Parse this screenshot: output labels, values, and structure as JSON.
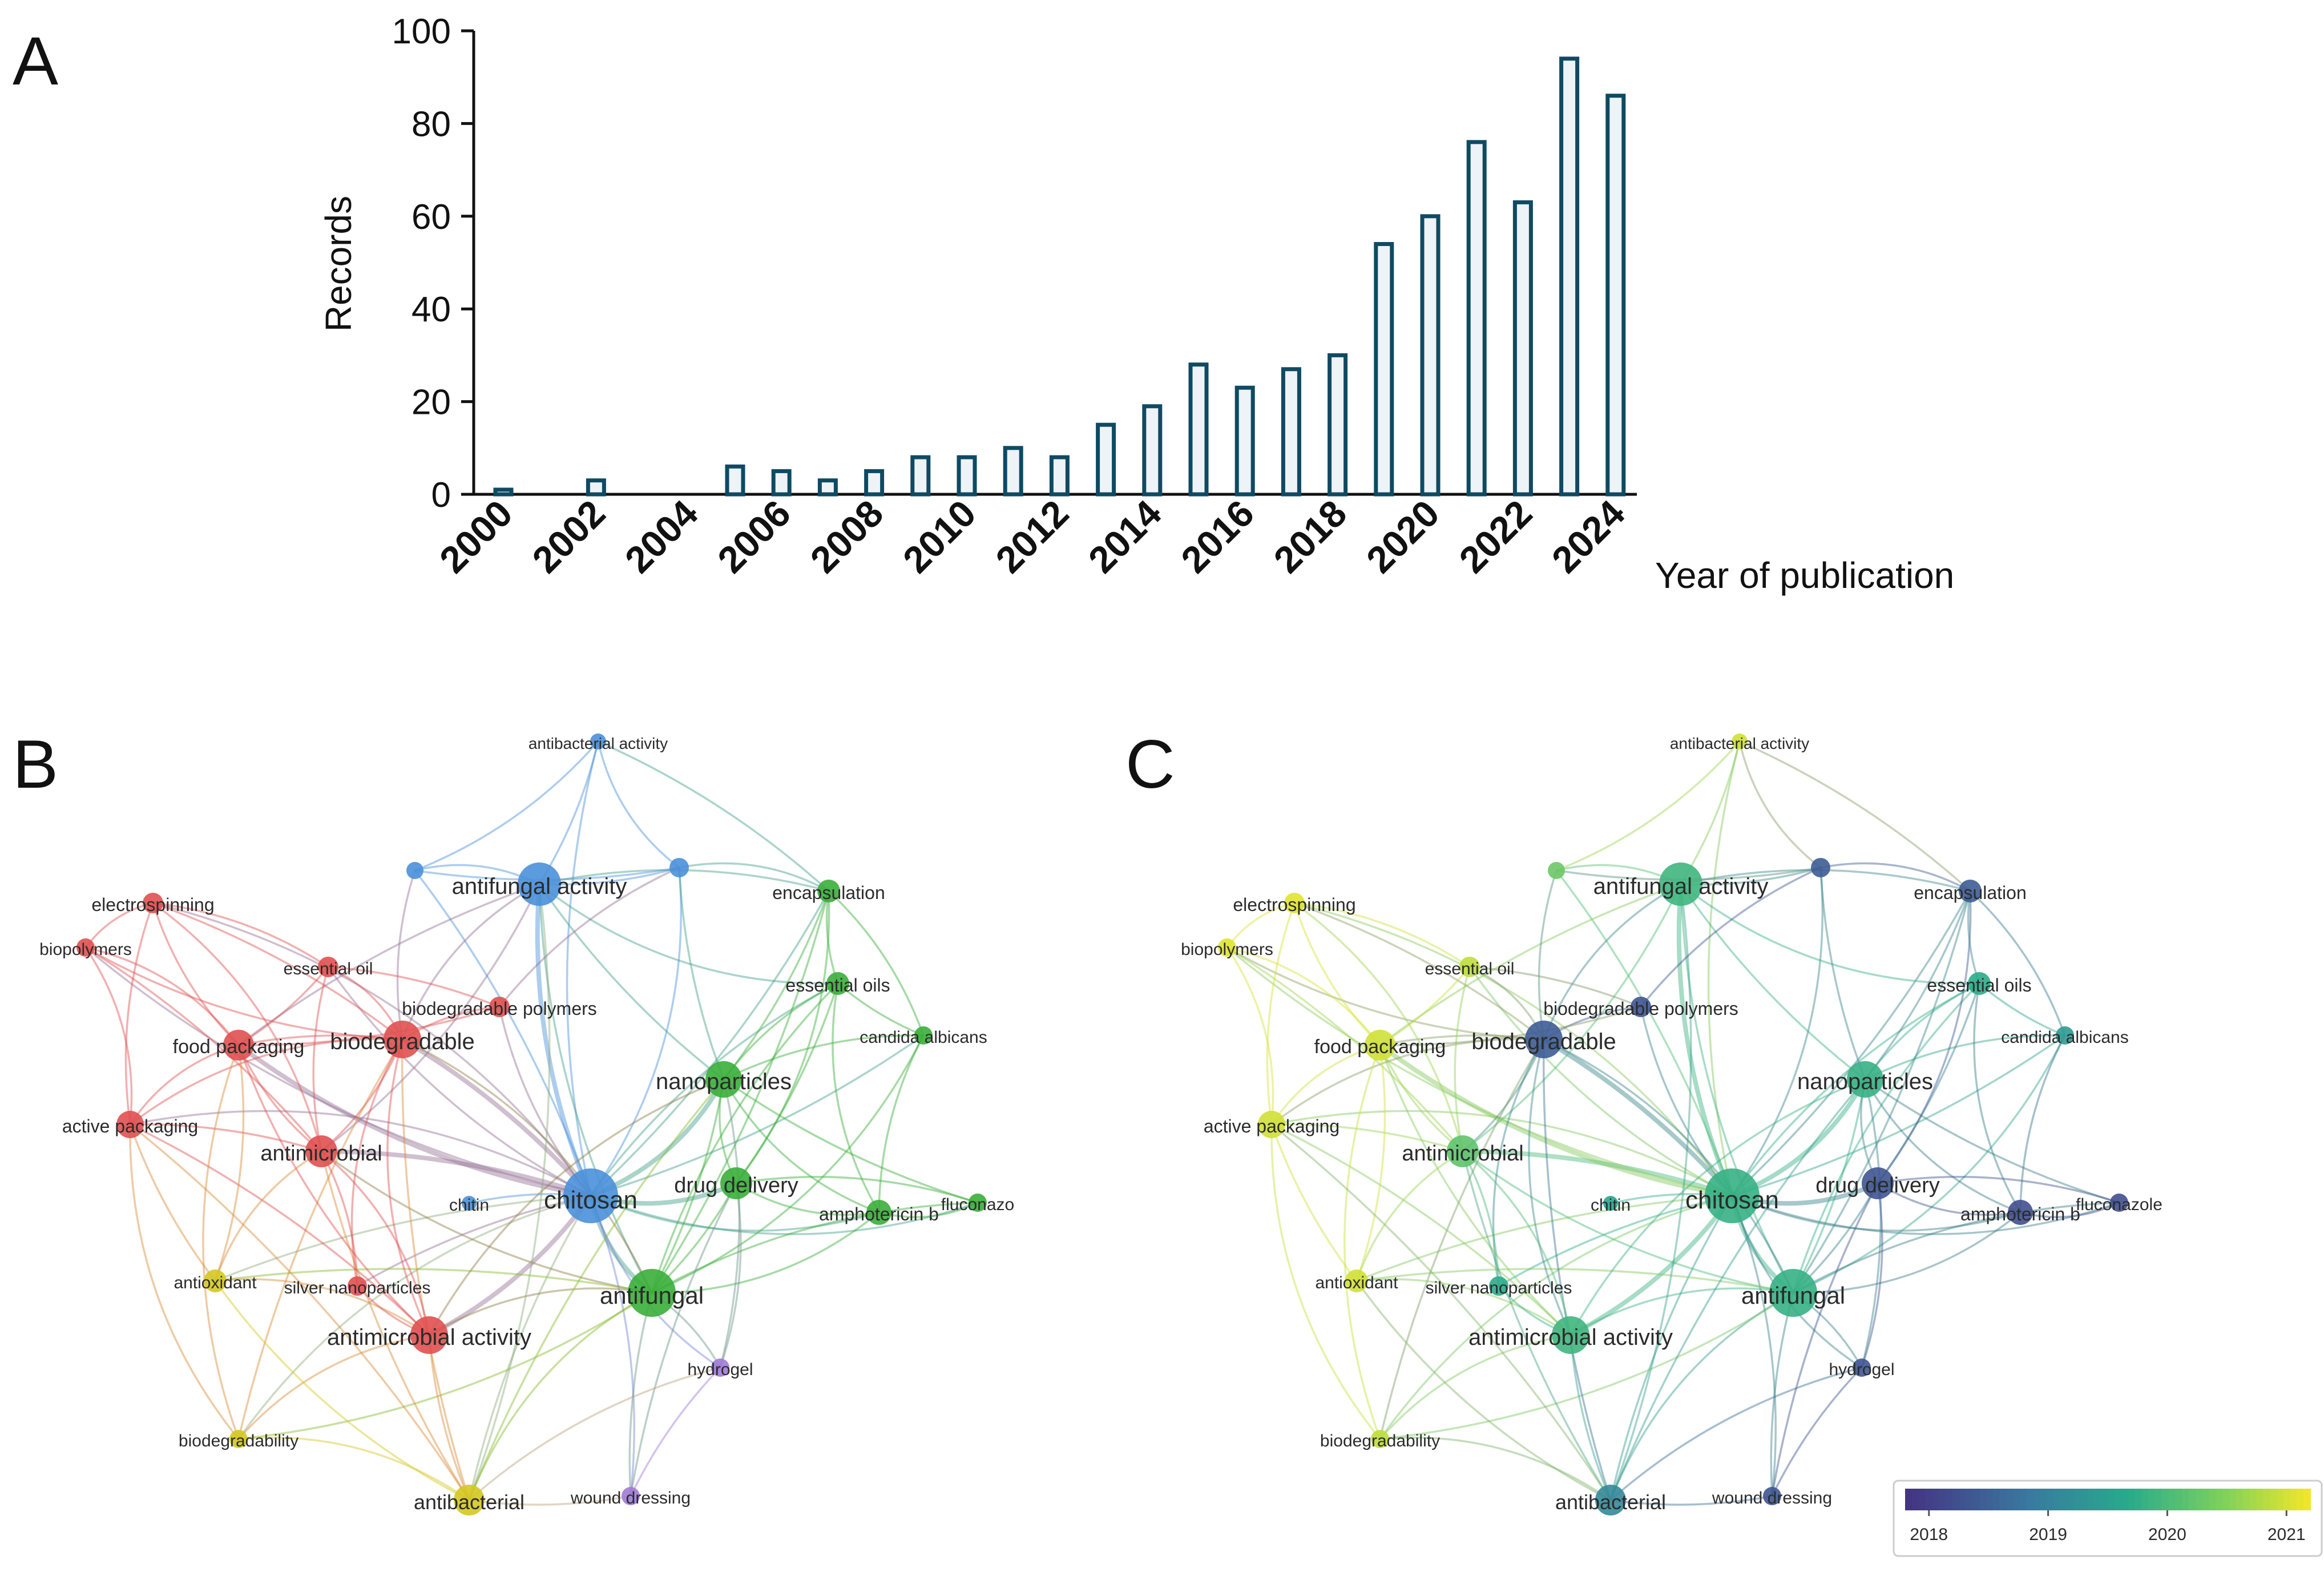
{
  "panels": {
    "a": "A",
    "b": "B",
    "c": "C"
  },
  "chart_data": [
    {
      "type": "bar",
      "panel": "A",
      "title": "",
      "xlabel": "Year of publication",
      "ylabel": "Records",
      "ylim": [
        0,
        100
      ],
      "yticks": [
        0,
        20,
        40,
        60,
        80,
        100
      ],
      "xtick_labels": [
        "2000",
        "2002",
        "2004",
        "2006",
        "2008",
        "2010",
        "2012",
        "2014",
        "2016",
        "2018",
        "2020",
        "2022",
        "2024"
      ],
      "categories": [
        "2000",
        "2001",
        "2002",
        "2003",
        "2004",
        "2005",
        "2006",
        "2007",
        "2008",
        "2009",
        "2010",
        "2011",
        "2012",
        "2013",
        "2014",
        "2015",
        "2016",
        "2017",
        "2018",
        "2019",
        "2020",
        "2021",
        "2022",
        "2023",
        "2024"
      ],
      "values": [
        1,
        0,
        3,
        0,
        0,
        6,
        5,
        3,
        5,
        8,
        8,
        10,
        8,
        15,
        19,
        28,
        23,
        27,
        30,
        54,
        60,
        76,
        63,
        94,
        86
      ],
      "colors": {
        "bar_fill": "#eef3f7",
        "bar_edge": "#0f4a63"
      }
    },
    {
      "type": "network",
      "panel": "B",
      "coloring": "cluster",
      "clusters": {
        "red": "#e05050",
        "green": "#3aae3a",
        "blue": "#4a90d9",
        "yellow": "#d4c820",
        "purple": "#a07ad6"
      },
      "nodes": [
        {
          "label": "chitosan",
          "cluster": "blue",
          "weight": 10
        },
        {
          "label": "antifungal",
          "cluster": "green",
          "weight": 8
        },
        {
          "label": "antifungal activity",
          "cluster": "blue",
          "weight": 7
        },
        {
          "label": "biodegradable",
          "cluster": "red",
          "weight": 6
        },
        {
          "label": "nanoparticles",
          "cluster": "green",
          "weight": 6
        },
        {
          "label": "antimicrobial activity",
          "cluster": "red",
          "weight": 6
        },
        {
          "label": "antimicrobial",
          "cluster": "red",
          "weight": 5
        },
        {
          "label": "drug delivery",
          "cluster": "green",
          "weight": 5
        },
        {
          "label": "food packaging",
          "cluster": "red",
          "weight": 5
        },
        {
          "label": "antibacterial",
          "cluster": "yellow",
          "weight": 5
        },
        {
          "label": "active packaging",
          "cluster": "red",
          "weight": 4
        },
        {
          "label": "essential oils",
          "cluster": "green",
          "weight": 4
        },
        {
          "label": "encapsulation",
          "cluster": "green",
          "weight": 4
        },
        {
          "label": "amphotericin b",
          "cluster": "green",
          "weight": 4
        },
        {
          "label": "biodegradable polymers",
          "cluster": "red",
          "weight": 4
        },
        {
          "label": "antioxidant",
          "cluster": "yellow",
          "weight": 3
        },
        {
          "label": "electrospinning",
          "cluster": "red",
          "weight": 3
        },
        {
          "label": "essential oil",
          "cluster": "red",
          "weight": 3
        },
        {
          "label": "silver nanoparticles",
          "cluster": "red",
          "weight": 3
        },
        {
          "label": "hydrogel",
          "cluster": "purple",
          "weight": 3
        },
        {
          "label": "wound dressing",
          "cluster": "purple",
          "weight": 3
        },
        {
          "label": "candida albicans",
          "cluster": "green",
          "weight": 3
        },
        {
          "label": "fluconazo",
          "cluster": "green",
          "weight": 3
        },
        {
          "label": "biopolymers",
          "cluster": "red",
          "weight": 3
        },
        {
          "label": "chitin",
          "cluster": "blue",
          "weight": 2
        },
        {
          "label": "biodegradability",
          "cluster": "yellow",
          "weight": 3
        },
        {
          "label": "antibacterial activity",
          "cluster": "blue",
          "weight": 2
        },
        {
          "label": "",
          "cluster": "blue",
          "weight": 3
        },
        {
          "label": "",
          "cluster": "blue",
          "weight": 4
        }
      ]
    },
    {
      "type": "network",
      "panel": "C",
      "coloring": "average publication year",
      "colorbar": {
        "ticks": [
          "2018",
          "2019",
          "2020",
          "2021"
        ],
        "range": [
          2017.8,
          2021.2
        ]
      },
      "nodes": [
        {
          "label": "chitosan",
          "year": 2019.8
        },
        {
          "label": "antifungal",
          "year": 2019.8
        },
        {
          "label": "antifungal activity",
          "year": 2019.9
        },
        {
          "label": "biodegradable",
          "year": 2018.4
        },
        {
          "label": "nanoparticles",
          "year": 2019.8
        },
        {
          "label": "antimicrobial activity",
          "year": 2019.9
        },
        {
          "label": "antimicrobial",
          "year": 2020.2
        },
        {
          "label": "drug delivery",
          "year": 2018.3
        },
        {
          "label": "food packaging",
          "year": 2021.0
        },
        {
          "label": "antibacterial",
          "year": 2019.1
        },
        {
          "label": "active packaging",
          "year": 2021.0
        },
        {
          "label": "essential oils",
          "year": 2019.7
        },
        {
          "label": "encapsulation",
          "year": 2018.4
        },
        {
          "label": "amphotericin b",
          "year": 2018.2
        },
        {
          "label": "biodegradable polymers",
          "year": 2018.3
        },
        {
          "label": "antioxidant",
          "year": 2021.0
        },
        {
          "label": "electrospinning",
          "year": 2021.1
        },
        {
          "label": "essential oil",
          "year": 2020.9
        },
        {
          "label": "silver nanoparticles",
          "year": 2019.7
        },
        {
          "label": "hydrogel",
          "year": 2018.3
        },
        {
          "label": "wound dressing",
          "year": 2018.3
        },
        {
          "label": "candida albicans",
          "year": 2019.4
        },
        {
          "label": "fluconazole",
          "year": 2018.2
        },
        {
          "label": "biopolymers",
          "year": 2021.1
        },
        {
          "label": "chitin",
          "year": 2019.6
        },
        {
          "label": "biodegradability",
          "year": 2020.9
        },
        {
          "label": "antibacterial activity",
          "year": 2021.0
        },
        {
          "label": "",
          "year": 2020.3
        },
        {
          "label": "",
          "year": 2018.4
        }
      ]
    }
  ]
}
